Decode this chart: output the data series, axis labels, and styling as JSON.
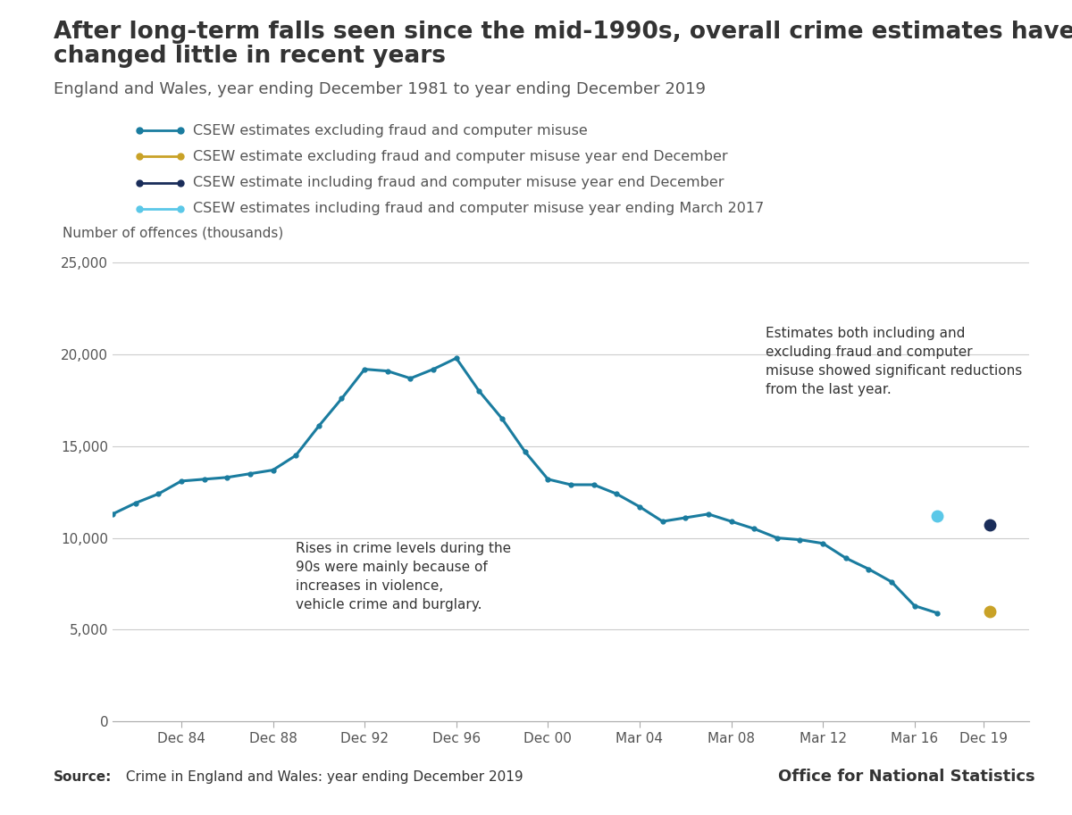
{
  "title_line1": "After long-term falls seen since the mid-1990s, overall crime estimates have",
  "title_line2": "changed little in recent years",
  "subtitle": "England and Wales, year ending December 1981 to year ending December 2019",
  "ylabel": "Number of offences (thousands)",
  "source_bold": "Source:",
  "source_rest": " Crime in England and Wales: year ending December 2019",
  "background_color": "#ffffff",
  "main_line_color": "#1a7c9f",
  "gold_point_color": "#c9a227",
  "dark_point_color": "#1a2d5a",
  "light_blue_point_color": "#5bc8e8",
  "annotation1_text": "Rises in crime levels during the\n90s were mainly because of\nincreases in violence,\nvehicle crime and burglary.",
  "annotation2_text": "Estimates both including and\nexcluding fraud and computer\nmisuse showed significant reductions\nfrom the last year.",
  "legend_entries": [
    "CSEW estimates excluding fraud and computer misuse",
    "CSEW estimate excluding fraud and computer misuse year end December",
    "CSEW estimate including fraud and computer misuse year end December",
    "CSEW estimates including fraud and computer misuse year ending March 2017"
  ],
  "main_line_x": [
    1981,
    1982,
    1983,
    1984,
    1985,
    1986,
    1987,
    1988,
    1989,
    1990,
    1991,
    1992,
    1993,
    1994,
    1995,
    1996,
    1997,
    1998,
    1999,
    2000,
    2001,
    2002,
    2003,
    2004,
    2005,
    2006,
    2007,
    2008,
    2009,
    2010,
    2011,
    2012,
    2013,
    2014,
    2015,
    2016,
    2017
  ],
  "main_line_y": [
    11300,
    11900,
    12400,
    13100,
    13200,
    13300,
    13500,
    13700,
    14500,
    16100,
    17600,
    19200,
    19100,
    18700,
    19200,
    19800,
    18000,
    16500,
    14700,
    13200,
    12900,
    12900,
    12400,
    11700,
    10900,
    11100,
    11300,
    10900,
    10500,
    10000,
    9900,
    9700,
    8900,
    8300,
    7600,
    6300,
    5900
  ],
  "gold_point_x": [
    2019.3
  ],
  "gold_point_y": [
    6000
  ],
  "dark_point_x": [
    2019.3
  ],
  "dark_point_y": [
    10700
  ],
  "light_blue_point_x": [
    2017.0
  ],
  "light_blue_point_y": [
    11200
  ],
  "xtick_labels": [
    "Dec 84",
    "Dec 88",
    "Dec 92",
    "Dec 96",
    "Dec 00",
    "Mar 04",
    "Mar 08",
    "Mar 12",
    "Mar 16",
    "Dec 19"
  ],
  "xtick_positions": [
    1984,
    1988,
    1992,
    1996,
    2000,
    2004,
    2008,
    2012,
    2016,
    2019
  ],
  "ylim": [
    0,
    26000
  ],
  "ytick_positions": [
    0,
    5000,
    10000,
    15000,
    20000,
    25000
  ],
  "text_color": "#333333",
  "tick_label_color": "#555555"
}
